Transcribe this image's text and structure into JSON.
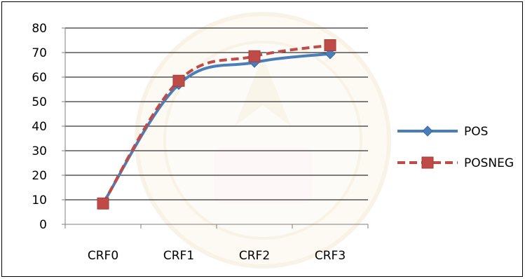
{
  "chart_data": {
    "type": "line",
    "title": "",
    "xlabel": "",
    "ylabel": "",
    "categories": [
      "CRF0",
      "CRF1",
      "CRF2",
      "CRF3"
    ],
    "ylim": [
      0,
      80
    ],
    "yticks": [
      0,
      10,
      20,
      30,
      40,
      50,
      60,
      70,
      80
    ],
    "grid": "horizontal",
    "legend_position": "right",
    "series": [
      {
        "name": "POS",
        "values": [
          8.5,
          57,
          66,
          69.5
        ],
        "color": "#4a7ebb",
        "marker": "diamond",
        "line_style": "solid"
      },
      {
        "name": "POSNEG",
        "values": [
          8.5,
          58.5,
          68.5,
          73
        ],
        "color": "#be4b48",
        "marker": "square",
        "line_style": "dashed"
      }
    ]
  }
}
